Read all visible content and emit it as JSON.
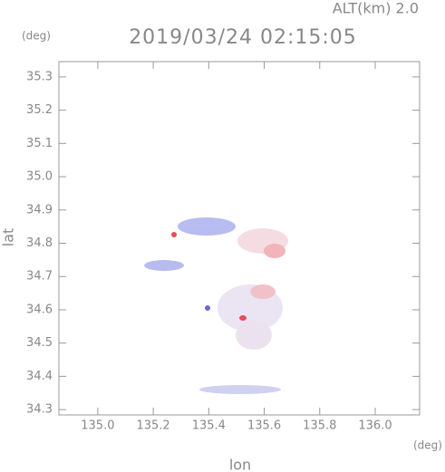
{
  "chart_data": {
    "type": "map",
    "title": "2019/03/24 02:15:05",
    "annotation": "ALT(km) 2.0",
    "xlabel": "lon",
    "ylabel": "lat",
    "xunit": "(deg)",
    "yunit": "(deg)",
    "xlim": [
      134.86,
      136.16
    ],
    "ylim": [
      34.284,
      35.346
    ],
    "xticks": [
      {
        "value": 135,
        "label": "135.0"
      },
      135.2,
      135.4,
      135.6,
      135.8,
      {
        "value": 136,
        "label": "136.0"
      }
    ],
    "yticks": [
      34.3,
      34.4,
      34.5,
      34.6,
      34.7,
      34.8,
      34.9,
      {
        "value": 35,
        "label": "35.0"
      },
      35.1,
      35.2,
      35.3
    ]
  }
}
